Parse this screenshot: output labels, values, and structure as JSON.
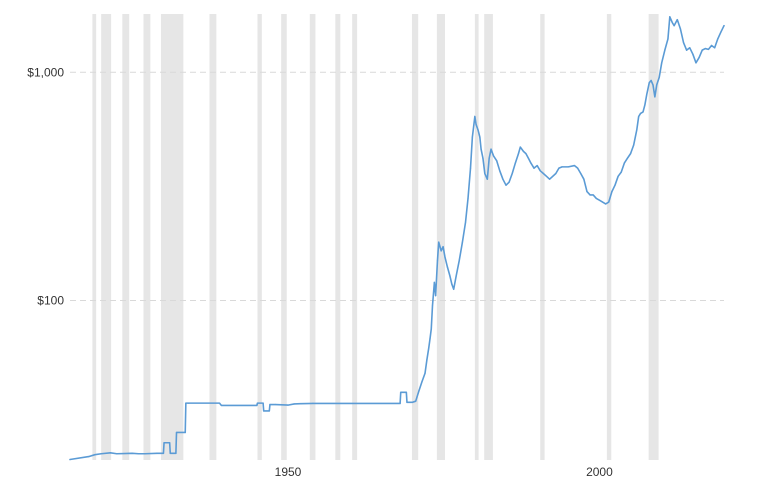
{
  "chart_data": {
    "type": "line",
    "title": "",
    "xlabel": "",
    "ylabel": "",
    "y_scale": "log",
    "xlim": [
      1915,
      2020
    ],
    "ylim": [
      20,
      1800
    ],
    "x_ticks": [
      {
        "value": 1950,
        "label": "1950"
      },
      {
        "value": 2000,
        "label": "2000"
      }
    ],
    "y_ticks": [
      {
        "value": 100,
        "label": "$100"
      },
      {
        "value": 1000,
        "label": "$1,000"
      }
    ],
    "grid": {
      "horizontal": true,
      "style": "dashed",
      "vertical": false
    },
    "legend": "none",
    "line_color": "#5b9bd5",
    "band_color": "#e6e6e6",
    "recession_bands": [
      [
        1918.6,
        1919.2
      ],
      [
        1920.0,
        1921.6
      ],
      [
        1923.4,
        1924.5
      ],
      [
        1926.8,
        1927.9
      ],
      [
        1929.6,
        1933.2
      ],
      [
        1937.4,
        1938.5
      ],
      [
        1945.1,
        1945.8
      ],
      [
        1948.9,
        1949.8
      ],
      [
        1953.5,
        1954.4
      ],
      [
        1957.6,
        1958.4
      ],
      [
        1960.3,
        1961.1
      ],
      [
        1969.9,
        1970.9
      ],
      [
        1973.9,
        1975.2
      ],
      [
        1980.0,
        1980.6
      ],
      [
        1981.5,
        1982.9
      ],
      [
        1990.5,
        1991.2
      ],
      [
        2001.2,
        2001.9
      ],
      [
        2007.9,
        2009.5
      ]
    ],
    "series": [
      {
        "x": [
          1915.0,
          1918.0,
          1919.0,
          1920.0,
          1921.5,
          1922.5,
          1925.0,
          1926.0,
          1927.0,
          1929.0,
          1930.0,
          1930.1,
          1931.0,
          1931.1,
          1932.0,
          1932.1,
          1933.5,
          1933.6,
          1934.0,
          1934.1,
          1939.0,
          1939.3,
          1945.0,
          1945.1,
          1946.0,
          1946.1,
          1947.0,
          1947.1,
          1948.0,
          1950.0,
          1951.0,
          1952.0,
          1954.0,
          1968.0,
          1968.1,
          1969.0,
          1969.1,
          1970.0,
          1970.5,
          1971.0,
          1971.5,
          1972.0,
          1972.3,
          1972.6,
          1972.8,
          1973.0,
          1973.2,
          1973.5,
          1973.7,
          1974.0,
          1974.2,
          1974.6,
          1974.9,
          1975.2,
          1975.6,
          1976.0,
          1976.3,
          1976.6,
          1977.0,
          1977.5,
          1978.0,
          1978.5,
          1978.9,
          1979.3,
          1979.6,
          1980.0,
          1980.2,
          1980.5,
          1980.8,
          1981.0,
          1981.3,
          1981.6,
          1982.0,
          1982.3,
          1982.6,
          1983.0,
          1983.5,
          1984.0,
          1984.5,
          1985.0,
          1985.5,
          1986.0,
          1986.5,
          1987.0,
          1987.3,
          1987.8,
          1988.2,
          1988.6,
          1989.0,
          1989.5,
          1990.0,
          1990.5,
          1991.0,
          1991.5,
          1992.0,
          1993.0,
          1993.5,
          1994.0,
          1995.0,
          1996.0,
          1996.5,
          1997.0,
          1997.5,
          1998.0,
          1998.5,
          1999.0,
          1999.5,
          2000.0,
          2000.5,
          2001.0,
          2001.5,
          2002.0,
          2002.5,
          2003.0,
          2003.5,
          2004.0,
          2004.5,
          2005.0,
          2005.5,
          2006.0,
          2006.3,
          2006.6,
          2007.0,
          2007.3,
          2007.6,
          2008.0,
          2008.3,
          2008.6,
          2008.9,
          2009.2,
          2009.6,
          2010.0,
          2010.5,
          2011.0,
          2011.3,
          2011.7,
          2012.0,
          2012.5,
          2013.0,
          2013.5,
          2014.0,
          2014.5,
          2015.0,
          2015.5,
          2016.0,
          2016.5,
          2017.0,
          2017.5,
          2018.0,
          2018.5,
          2019.0,
          2019.5,
          2020.0
        ],
        "y": [
          20.1,
          20.7,
          21.1,
          21.3,
          21.5,
          21.3,
          21.4,
          21.3,
          21.3,
          21.4,
          21.4,
          23.8,
          23.8,
          21.4,
          21.4,
          26.4,
          26.4,
          35.5,
          35.5,
          35.5,
          35.5,
          34.7,
          34.7,
          35.5,
          35.5,
          32.8,
          32.8,
          35.0,
          35.0,
          34.8,
          35.2,
          35.3,
          35.4,
          35.4,
          39.6,
          39.6,
          35.8,
          35.8,
          36.2,
          40.0,
          44.0,
          48.0,
          55.0,
          62.0,
          68.0,
          75.0,
          95.0,
          120.0,
          105.0,
          150.0,
          180.0,
          165.0,
          172.0,
          155.0,
          140.0,
          128.0,
          118.0,
          112.0,
          128.0,
          150.0,
          180.0,
          220.0,
          280.0,
          380.0,
          520.0,
          640.0,
          590.0,
          560.0,
          520.0,
          460.0,
          420.0,
          360.0,
          340.0,
          420.0,
          460.0,
          430.0,
          410.0,
          370.0,
          340.0,
          320.0,
          330.0,
          360.0,
          400.0,
          440.0,
          470.0,
          450.0,
          440.0,
          420.0,
          400.0,
          380.0,
          390.0,
          370.0,
          360.0,
          350.0,
          340.0,
          360.0,
          380.0,
          385.0,
          385.0,
          390.0,
          380.0,
          360.0,
          340.0,
          300.0,
          290.0,
          290.0,
          280.0,
          275.0,
          270.0,
          265.0,
          270.0,
          300.0,
          320.0,
          350.0,
          365.0,
          400.0,
          420.0,
          440.0,
          480.0,
          560.0,
          640.0,
          660.0,
          670.0,
          720.0,
          800.0,
          900.0,
          920.0,
          880.0,
          780.0,
          880.0,
          950.0,
          1100.0,
          1250.0,
          1400.0,
          1750.0,
          1650.0,
          1600.0,
          1700.0,
          1550.0,
          1350.0,
          1250.0,
          1280.0,
          1200.0,
          1100.0,
          1160.0,
          1250.0,
          1270.0,
          1260.0,
          1310.0,
          1280.0,
          1400.0,
          1500.0,
          1600.0
        ]
      }
    ]
  }
}
